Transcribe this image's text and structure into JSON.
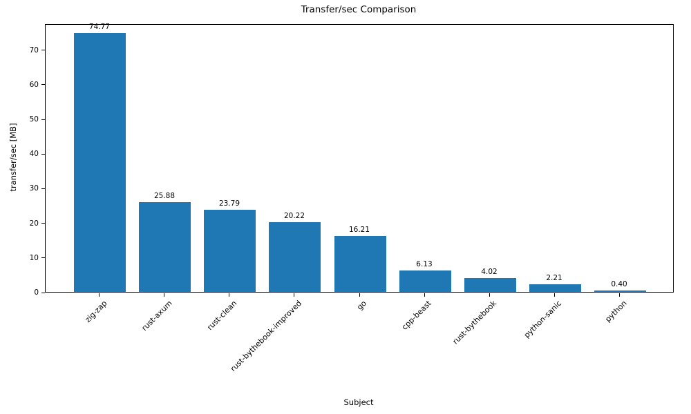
{
  "chart_data": {
    "type": "bar",
    "title": "Transfer/sec Comparison",
    "xlabel": "Subject",
    "ylabel": "transfer/sec [MB]",
    "categories": [
      "zig-zap",
      "rust-axum",
      "rust-clean",
      "rust-bythebook-improved",
      "go",
      "cpp-beast",
      "rust-bythebook",
      "python-sanic",
      "python"
    ],
    "values": [
      74.77,
      25.88,
      23.79,
      20.22,
      16.21,
      6.13,
      4.02,
      2.21,
      0.4
    ],
    "value_labels": [
      "74.77",
      "25.88",
      "23.79",
      "20.22",
      "16.21",
      "6.13",
      "4.02",
      "2.21",
      "0.40"
    ],
    "ylim": [
      0,
      77.5
    ],
    "yticks": [
      0,
      10,
      20,
      30,
      40,
      50,
      60,
      70
    ],
    "bar_color": "#1f77b4",
    "bar_width_fraction": 0.8,
    "grid": false,
    "legend": "none"
  }
}
